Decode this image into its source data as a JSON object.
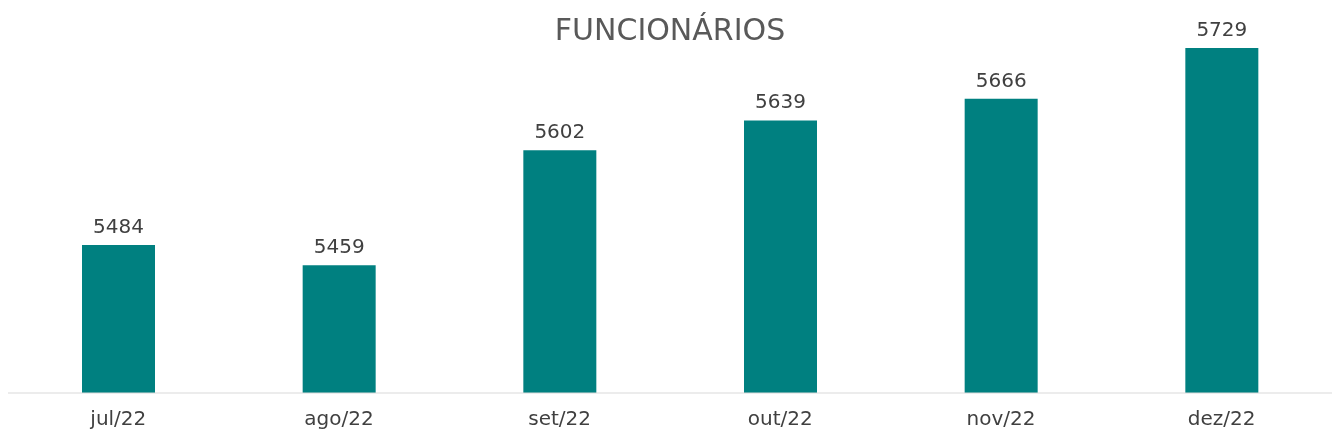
{
  "chart_data": {
    "type": "bar",
    "title": "FUNCIONÁRIOS",
    "categories": [
      "jul/22",
      "ago/22",
      "set/22",
      "out/22",
      "nov/22",
      "dez/22"
    ],
    "values": [
      5484,
      5459,
      5602,
      5639,
      5666,
      5729
    ],
    "color": "#008080",
    "ylim": [
      5300,
      5729
    ],
    "data_labels": true,
    "grid": false
  }
}
